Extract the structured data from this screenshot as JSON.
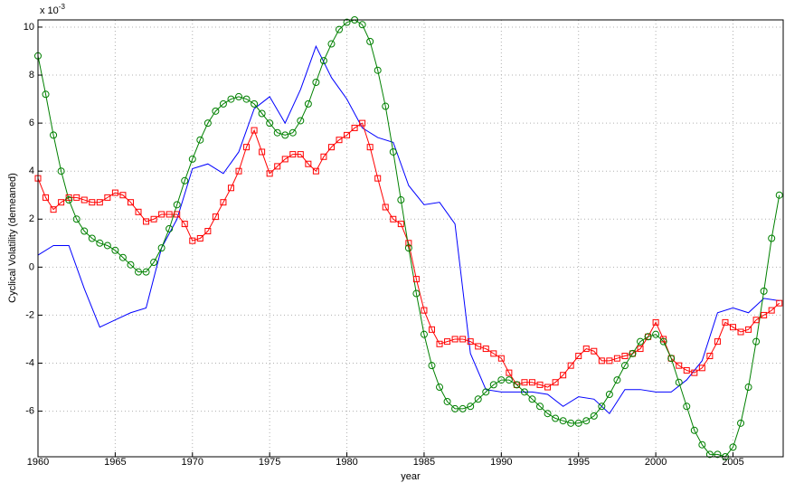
{
  "chart_data": {
    "type": "line",
    "x_label": "year",
    "y_label": "Cyclical Volatility (demeaned)",
    "y_exponent": {
      "base": "x 10",
      "power": "-3"
    },
    "xlim": [
      1960,
      2008.25
    ],
    "ylim": [
      -7.9,
      10.3
    ],
    "xticks": [
      1960,
      1965,
      1970,
      1975,
      1980,
      1985,
      1990,
      1995,
      2000,
      2005
    ],
    "yticks": [
      -6,
      -4,
      -2,
      0,
      2,
      4,
      6,
      8,
      10
    ],
    "grid": true,
    "series": [
      {
        "name": "blue",
        "color": "#0000ff",
        "marker": "none",
        "x": [
          1960,
          1961,
          1962,
          1963,
          1964,
          1965,
          1966,
          1967,
          1968,
          1969,
          1970,
          1971,
          1972,
          1973,
          1974,
          1975,
          1976,
          1977,
          1978,
          1979,
          1980,
          1981,
          1982,
          1983,
          1984,
          1985,
          1986,
          1987,
          1988,
          1989,
          1990,
          1991,
          1992,
          1993,
          1994,
          1995,
          1996,
          1997,
          1998,
          1999,
          2000,
          2001,
          2002,
          2003,
          2004,
          2005,
          2006,
          2007,
          2008
        ],
        "values": [
          0.5,
          0.9,
          0.9,
          -0.9,
          -2.5,
          -2.2,
          -1.9,
          -1.7,
          0.8,
          2.0,
          4.1,
          4.3,
          3.9,
          4.8,
          6.6,
          7.1,
          6.0,
          7.4,
          9.2,
          7.9,
          7.0,
          5.8,
          5.4,
          5.2,
          3.4,
          2.6,
          2.7,
          1.8,
          -3.6,
          -5.1,
          -5.2,
          -5.2,
          -5.2,
          -5.3,
          -5.8,
          -5.4,
          -5.5,
          -6.1,
          -5.1,
          -5.1,
          -5.2,
          -5.2,
          -4.7,
          -3.9,
          -1.9,
          -1.7,
          -1.9,
          -1.3,
          -1.4
        ]
      },
      {
        "name": "red",
        "color": "#ff0000",
        "marker": "square",
        "x": [
          1960,
          1960.5,
          1961,
          1961.5,
          1962,
          1962.5,
          1963,
          1963.5,
          1964,
          1964.5,
          1965,
          1965.5,
          1966,
          1966.5,
          1967,
          1967.5,
          1968,
          1968.5,
          1969,
          1969.5,
          1970,
          1970.5,
          1971,
          1971.5,
          1972,
          1972.5,
          1973,
          1973.5,
          1974,
          1974.5,
          1975,
          1975.5,
          1976,
          1976.5,
          1977,
          1977.5,
          1978,
          1978.5,
          1979,
          1979.5,
          1980,
          1980.5,
          1981,
          1981.5,
          1982,
          1982.5,
          1983,
          1983.5,
          1984,
          1984.5,
          1985,
          1985.5,
          1986,
          1986.5,
          1987,
          1987.5,
          1988,
          1988.5,
          1989,
          1989.5,
          1990,
          1990.5,
          1991,
          1991.5,
          1992,
          1992.5,
          1993,
          1993.5,
          1994,
          1994.5,
          1995,
          1995.5,
          1996,
          1996.5,
          1997,
          1997.5,
          1998,
          1998.5,
          1999,
          1999.5,
          2000,
          2000.5,
          2001,
          2001.5,
          2002,
          2002.5,
          2003,
          2003.5,
          2004,
          2004.5,
          2005,
          2005.5,
          2006,
          2006.5,
          2007,
          2007.5,
          2008
        ],
        "values": [
          3.7,
          2.9,
          2.4,
          2.7,
          2.9,
          2.9,
          2.8,
          2.7,
          2.7,
          2.9,
          3.1,
          3.0,
          2.7,
          2.3,
          1.9,
          2.0,
          2.2,
          2.2,
          2.2,
          1.8,
          1.1,
          1.2,
          1.5,
          2.1,
          2.7,
          3.3,
          4.0,
          5.0,
          5.7,
          4.8,
          3.9,
          4.2,
          4.5,
          4.7,
          4.7,
          4.3,
          4.0,
          4.6,
          5.0,
          5.3,
          5.5,
          5.8,
          6.0,
          5.0,
          3.7,
          2.5,
          2.0,
          1.8,
          1.0,
          -0.5,
          -1.8,
          -2.6,
          -3.2,
          -3.1,
          -3.0,
          -3.0,
          -3.1,
          -3.3,
          -3.4,
          -3.6,
          -3.8,
          -4.4,
          -4.9,
          -4.8,
          -4.8,
          -4.9,
          -5.0,
          -4.8,
          -4.5,
          -4.1,
          -3.7,
          -3.4,
          -3.5,
          -3.9,
          -3.9,
          -3.8,
          -3.7,
          -3.6,
          -3.4,
          -2.9,
          -2.3,
          -3.0,
          -3.8,
          -4.1,
          -4.3,
          -4.4,
          -4.2,
          -3.7,
          -3.1,
          -2.3,
          -2.5,
          -2.7,
          -2.6,
          -2.2,
          -2.0,
          -1.8,
          -1.5
        ]
      },
      {
        "name": "green",
        "color": "#008000",
        "marker": "circle",
        "x": [
          1960,
          1960.5,
          1961,
          1961.5,
          1962,
          1962.5,
          1963,
          1963.5,
          1964,
          1964.5,
          1965,
          1965.5,
          1966,
          1966.5,
          1967,
          1967.5,
          1968,
          1968.5,
          1969,
          1969.5,
          1970,
          1970.5,
          1971,
          1971.5,
          1972,
          1972.5,
          1973,
          1973.5,
          1974,
          1974.5,
          1975,
          1975.5,
          1976,
          1976.5,
          1977,
          1977.5,
          1978,
          1978.5,
          1979,
          1979.5,
          1980,
          1980.5,
          1981,
          1981.5,
          1982,
          1982.5,
          1983,
          1983.5,
          1984,
          1984.5,
          1985,
          1985.5,
          1986,
          1986.5,
          1987,
          1987.5,
          1988,
          1988.5,
          1989,
          1989.5,
          1990,
          1990.5,
          1991,
          1991.5,
          1992,
          1992.5,
          1993,
          1993.5,
          1994,
          1994.5,
          1995,
          1995.5,
          1996,
          1996.5,
          1997,
          1997.5,
          1998,
          1998.5,
          1999,
          1999.5,
          2000,
          2000.5,
          2001,
          2001.5,
          2002,
          2002.5,
          2003,
          2003.5,
          2004,
          2004.5,
          2005,
          2005.5,
          2006,
          2006.5,
          2007,
          2007.5,
          2008
        ],
        "values": [
          8.8,
          7.2,
          5.5,
          4.0,
          2.8,
          2.0,
          1.5,
          1.2,
          1.0,
          0.9,
          0.7,
          0.4,
          0.1,
          -0.2,
          -0.2,
          0.2,
          0.8,
          1.6,
          2.6,
          3.6,
          4.5,
          5.3,
          6.0,
          6.5,
          6.8,
          7.0,
          7.1,
          7.0,
          6.8,
          6.4,
          6.0,
          5.6,
          5.5,
          5.6,
          6.1,
          6.8,
          7.7,
          8.6,
          9.3,
          9.9,
          10.2,
          10.3,
          10.1,
          9.4,
          8.2,
          6.7,
          4.8,
          2.8,
          0.8,
          -1.1,
          -2.8,
          -4.1,
          -5.0,
          -5.6,
          -5.9,
          -5.9,
          -5.8,
          -5.5,
          -5.2,
          -4.9,
          -4.7,
          -4.7,
          -4.9,
          -5.2,
          -5.5,
          -5.8,
          -6.1,
          -6.3,
          -6.4,
          -6.5,
          -6.5,
          -6.4,
          -6.2,
          -5.8,
          -5.3,
          -4.7,
          -4.1,
          -3.6,
          -3.1,
          -2.9,
          -2.8,
          -3.1,
          -3.8,
          -4.8,
          -5.8,
          -6.8,
          -7.4,
          -7.8,
          -7.8,
          -7.9,
          -7.5,
          -6.5,
          -5.0,
          -3.1,
          -1.0,
          1.2,
          3.0
        ]
      }
    ]
  }
}
